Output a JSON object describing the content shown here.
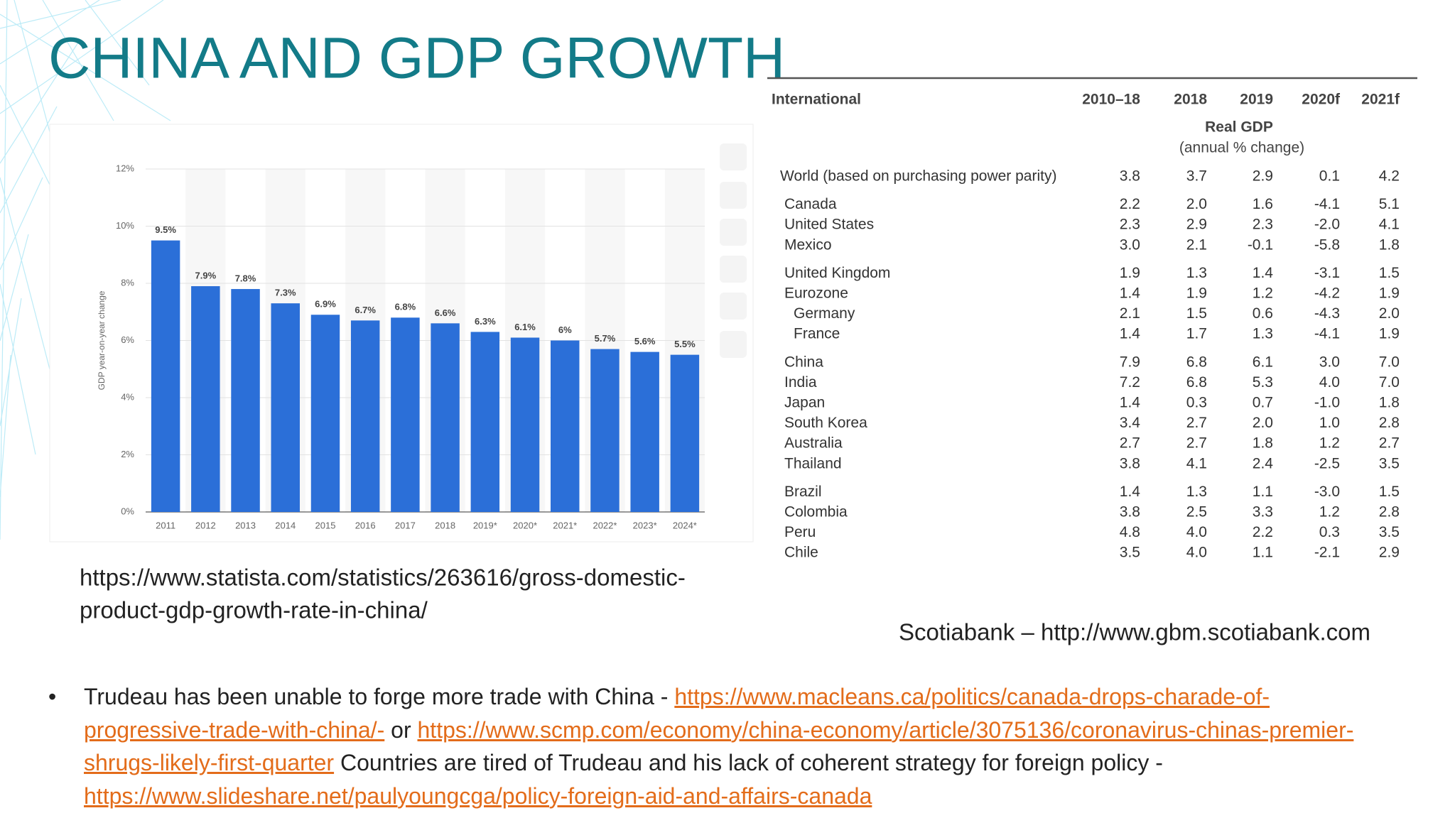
{
  "title": "CHINA AND GDP GROWTH",
  "chart_data": {
    "type": "bar",
    "y_label": "GDP year-on-year change",
    "categories": [
      "2011",
      "2012",
      "2013",
      "2014",
      "2015",
      "2016",
      "2017",
      "2018",
      "2019*",
      "2020*",
      "2021*",
      "2022*",
      "2023*",
      "2024*"
    ],
    "values": [
      9.5,
      7.9,
      7.8,
      7.3,
      6.9,
      6.7,
      6.8,
      6.6,
      6.3,
      6.1,
      6,
      5.7,
      5.6,
      5.5
    ],
    "value_labels": [
      "9.5%",
      "7.9%",
      "7.8%",
      "7.3%",
      "6.9%",
      "6.7%",
      "6.8%",
      "6.6%",
      "6.3%",
      "6.1%",
      "6%",
      "5.7%",
      "5.6%",
      "5.5%"
    ],
    "color": "#2b6fd8",
    "ylim": [
      0,
      12
    ],
    "yticks": [
      {
        "value": 0,
        "label": "0%"
      },
      {
        "value": 2,
        "label": "2%"
      },
      {
        "value": 4,
        "label": "4%"
      },
      {
        "value": 6,
        "label": "6%"
      },
      {
        "value": 8,
        "label": "8%"
      },
      {
        "value": 10,
        "label": "10%"
      },
      {
        "value": 12,
        "label": "12%"
      }
    ],
    "grid": true
  },
  "table": {
    "header": [
      "International",
      "2010–18",
      "2018",
      "2019",
      "2020f",
      "2021f"
    ],
    "subheader": [
      "Real GDP",
      "(annual % change)"
    ],
    "groups": [
      [
        {
          "name": "World (based on purchasing power parity)",
          "values": [
            "3.8",
            "3.7",
            "2.9",
            "0.1",
            "4.2"
          ]
        }
      ],
      [
        {
          "name": "Canada",
          "values": [
            "2.2",
            "2.0",
            "1.6",
            "-4.1",
            "5.1"
          ]
        },
        {
          "name": "United States",
          "values": [
            "2.3",
            "2.9",
            "2.3",
            "-2.0",
            "4.1"
          ]
        },
        {
          "name": "Mexico",
          "values": [
            "3.0",
            "2.1",
            "-0.1",
            "-5.8",
            "1.8"
          ]
        }
      ],
      [
        {
          "name": "United Kingdom",
          "values": [
            "1.9",
            "1.3",
            "1.4",
            "-3.1",
            "1.5"
          ]
        },
        {
          "name": "Eurozone",
          "values": [
            "1.4",
            "1.9",
            "1.2",
            "-4.2",
            "1.9"
          ]
        },
        {
          "name": "Germany",
          "values": [
            "2.1",
            "1.5",
            "0.6",
            "-4.3",
            "2.0"
          ]
        },
        {
          "name": "France",
          "values": [
            "1.4",
            "1.7",
            "1.3",
            "-4.1",
            "1.9"
          ]
        }
      ],
      [
        {
          "name": "China",
          "values": [
            "7.9",
            "6.8",
            "6.1",
            "3.0",
            "7.0"
          ]
        },
        {
          "name": "India",
          "values": [
            "7.2",
            "6.8",
            "5.3",
            "4.0",
            "7.0"
          ]
        },
        {
          "name": "Japan",
          "values": [
            "1.4",
            "0.3",
            "0.7",
            "-1.0",
            "1.8"
          ]
        },
        {
          "name": "South Korea",
          "values": [
            "3.4",
            "2.7",
            "2.0",
            "1.0",
            "2.8"
          ]
        },
        {
          "name": "Australia",
          "values": [
            "2.7",
            "2.7",
            "1.8",
            "1.2",
            "2.7"
          ]
        },
        {
          "name": "Thailand",
          "values": [
            "3.8",
            "4.1",
            "2.4",
            "-2.5",
            "3.5"
          ]
        }
      ],
      [
        {
          "name": "Brazil",
          "values": [
            "1.4",
            "1.3",
            "1.1",
            "-3.0",
            "1.5"
          ]
        },
        {
          "name": "Colombia",
          "values": [
            "3.8",
            "2.5",
            "3.3",
            "1.2",
            "2.8"
          ]
        },
        {
          "name": "Peru",
          "values": [
            "4.8",
            "4.0",
            "2.2",
            "0.3",
            "3.5"
          ]
        },
        {
          "name": "Chile",
          "values": [
            "3.5",
            "4.0",
            "1.1",
            "-2.1",
            "2.9"
          ]
        }
      ]
    ]
  },
  "sources": {
    "statista": [
      "https://www.statista.com/statistics/263616/gross-domestic-",
      "product-gdp-growth-rate-in-china/"
    ],
    "scotiabank": "Scotiabank – http://www.gbm.scotiabank.com"
  },
  "bullet": [
    {
      "text": "Trudeau has been unable to forge more trade with China - "
    },
    {
      "text": "https://www.macleans.ca/politics/canada-drops-charade-of-progressive-trade-with-china/-",
      "link": true
    },
    {
      "text": " or "
    },
    {
      "text": "https://www.scmp.com/economy/china-economy/article/3075136/coronavirus-chinas-premier-shrugs-likely-first-quarter",
      "link": true
    },
    {
      "text": "  Countries are tired of Trudeau and his lack of coherent strategy for foreign policy - "
    },
    {
      "text": "https://www.slideshare.net/paulyoungcga/policy-foreign-aid-and-affairs-canada",
      "link": true
    }
  ]
}
